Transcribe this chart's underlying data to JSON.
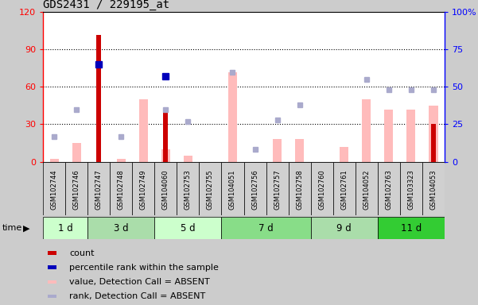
{
  "title": "GDS2431 / 229195_at",
  "samples": [
    "GSM102744",
    "GSM102746",
    "GSM102747",
    "GSM102748",
    "GSM102749",
    "GSM104060",
    "GSM102753",
    "GSM102755",
    "GSM104051",
    "GSM102756",
    "GSM102757",
    "GSM102758",
    "GSM102760",
    "GSM102761",
    "GSM104052",
    "GSM102763",
    "GSM103323",
    "GSM104053"
  ],
  "time_groups": [
    {
      "label": "1 d",
      "start": 0,
      "end": 2,
      "color": "#ccffcc"
    },
    {
      "label": "3 d",
      "start": 2,
      "end": 5,
      "color": "#aaddaa"
    },
    {
      "label": "5 d",
      "start": 5,
      "end": 8,
      "color": "#ccffcc"
    },
    {
      "label": "7 d",
      "start": 8,
      "end": 12,
      "color": "#88dd88"
    },
    {
      "label": "9 d",
      "start": 12,
      "end": 15,
      "color": "#aaddaa"
    },
    {
      "label": "11 d",
      "start": 15,
      "end": 18,
      "color": "#33cc33"
    }
  ],
  "count_values": [
    0,
    0,
    102,
    0,
    0,
    40,
    0,
    0,
    0,
    0,
    0,
    0,
    0,
    0,
    0,
    0,
    0,
    30
  ],
  "percentile_rank_values": [
    null,
    null,
    65,
    null,
    null,
    57,
    null,
    null,
    null,
    null,
    null,
    null,
    null,
    null,
    null,
    null,
    null,
    null
  ],
  "pink_bar_values": [
    2,
    15,
    0,
    2,
    50,
    10,
    5,
    0,
    72,
    0,
    18,
    18,
    0,
    12,
    50,
    42,
    42,
    45
  ],
  "blue_square_values": [
    17,
    35,
    null,
    17,
    null,
    35,
    27,
    null,
    60,
    8,
    28,
    38,
    null,
    null,
    55,
    48,
    48,
    48
  ],
  "left_ylim": [
    0,
    120
  ],
  "right_ylim": [
    0,
    100
  ],
  "left_yticks": [
    0,
    30,
    60,
    90,
    120
  ],
  "right_yticks": [
    0,
    25,
    50,
    75,
    100
  ],
  "right_yticklabels": [
    "0",
    "25",
    "50",
    "75",
    "100%"
  ],
  "bg_color": "#cccccc",
  "plot_bg_color": "#ffffff",
  "count_color": "#cc0000",
  "percentile_color": "#0000bb",
  "pink_bar_color": "#ffbbbb",
  "blue_sq_color": "#aaaacc",
  "legend_items": [
    {
      "color": "#cc0000",
      "label": "count"
    },
    {
      "color": "#0000bb",
      "label": "percentile rank within the sample"
    },
    {
      "color": "#ffbbbb",
      "label": "value, Detection Call = ABSENT"
    },
    {
      "color": "#aaaacc",
      "label": "rank, Detection Call = ABSENT"
    }
  ]
}
